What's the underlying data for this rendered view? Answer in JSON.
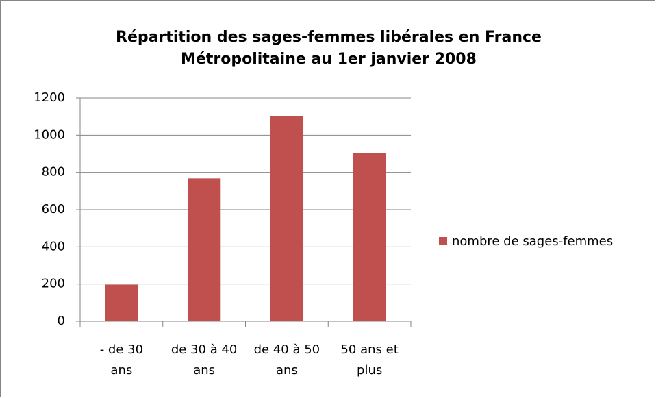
{
  "chart_data": {
    "type": "bar",
    "title": "Répartition des sages-femmes libérales en France Métropolitaine au 1er janvier 2008",
    "categories": [
      "- de 30 ans",
      "de 30 à 40 ans",
      "de 40 à 50 ans",
      "50 ans et plus"
    ],
    "series": [
      {
        "name": "nombre de sages-femmes",
        "color": "#c0504d",
        "values": [
          197,
          768,
          1103,
          905
        ]
      }
    ],
    "ylim": [
      0,
      1200
    ],
    "yticks": [
      0,
      200,
      400,
      600,
      800,
      1000,
      1200
    ],
    "grid": true,
    "legend": "right"
  }
}
